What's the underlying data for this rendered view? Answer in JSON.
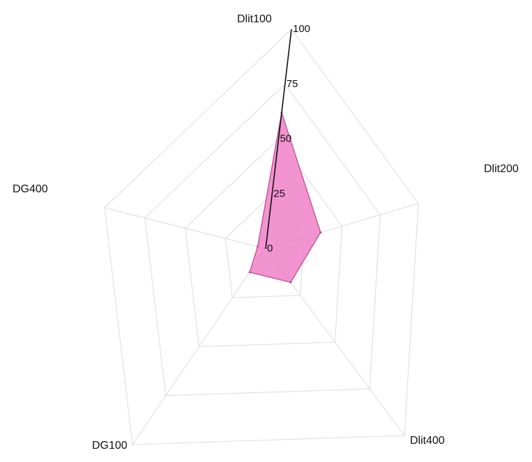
{
  "chart_data": {
    "type": "radar",
    "axes": [
      "Dlit100",
      "Dlit200",
      "Dlit400",
      "DG100",
      "DG400"
    ],
    "ticks": [
      0,
      25,
      50,
      75,
      100
    ],
    "range": [
      0,
      100
    ],
    "series": [
      {
        "values": [
          62,
          36,
          18,
          12,
          5
        ]
      }
    ],
    "colors": {
      "fill": "#ee7cc4",
      "stroke": "#c2408e",
      "grid": "#dcdcdc",
      "axis": "#111111"
    },
    "grid": true
  }
}
